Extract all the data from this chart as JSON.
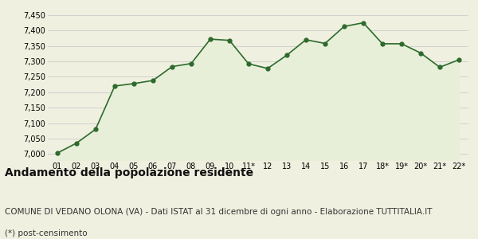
{
  "x_labels": [
    "01",
    "02",
    "03",
    "04",
    "05",
    "06",
    "07",
    "08",
    "09",
    "10",
    "11*",
    "12",
    "13",
    "14",
    "15",
    "16",
    "17",
    "18*",
    "19*",
    "20*",
    "21*",
    "22*"
  ],
  "y_values": [
    7003,
    7035,
    7080,
    7220,
    7228,
    7238,
    7283,
    7293,
    7372,
    7368,
    7292,
    7277,
    7320,
    7370,
    7358,
    7413,
    7425,
    7357,
    7357,
    7327,
    7281,
    7305
  ],
  "line_color": "#2d6a2d",
  "fill_color": "#e8efd8",
  "marker_color": "#2d6a2d",
  "bg_color": "#f0f0e0",
  "grid_color": "#cccccc",
  "ylim_min": 6980,
  "ylim_max": 7460,
  "yticks": [
    7000,
    7050,
    7100,
    7150,
    7200,
    7250,
    7300,
    7350,
    7400,
    7450
  ],
  "title": "Andamento della popolazione residente",
  "subtitle": "COMUNE DI VEDANO OLONA (VA) - Dati ISTAT al 31 dicembre di ogni anno - Elaborazione TUTTITALIA.IT",
  "footnote": "(*) post-censimento",
  "title_fontsize": 10,
  "subtitle_fontsize": 7.5,
  "footnote_fontsize": 7.5
}
